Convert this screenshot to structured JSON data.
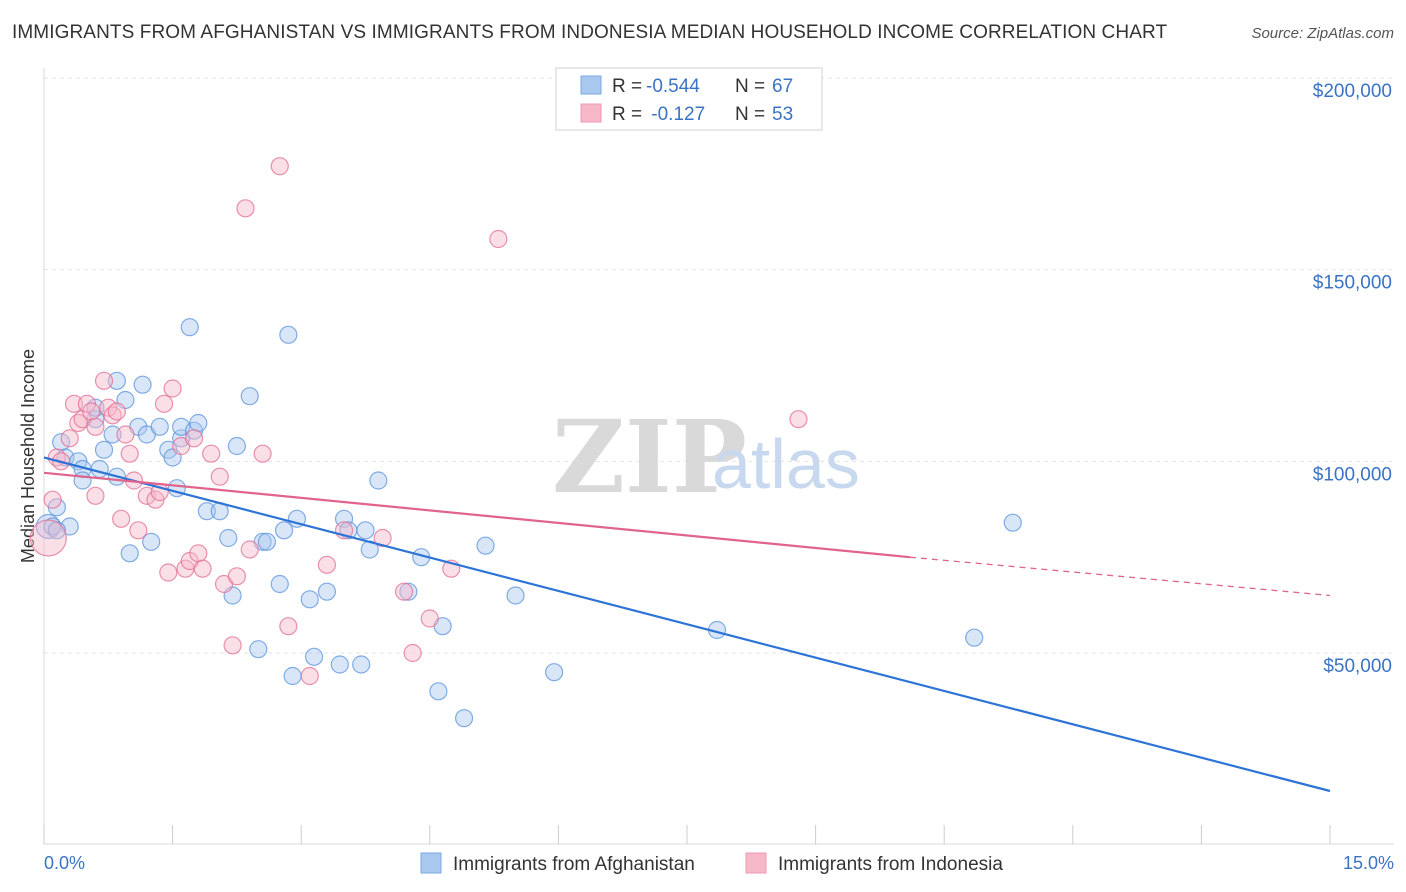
{
  "title": "IMMIGRANTS FROM AFGHANISTAN VS IMMIGRANTS FROM INDONESIA MEDIAN HOUSEHOLD INCOME CORRELATION CHART",
  "source": "Source: ZipAtlas.com",
  "watermark": {
    "zip": "ZIP",
    "atlas": "atlas"
  },
  "legend_top": [
    {
      "r_label": "R = ",
      "r_value": "-0.544",
      "n_label": "N = ",
      "n_value": "67",
      "color": "#a9c8ef"
    },
    {
      "r_label": "R = ",
      "r_value": " -0.127",
      "n_label": "N = ",
      "n_value": "53",
      "color": "#f6b8c9"
    }
  ],
  "legend_bottom": [
    {
      "label": "Immigrants from Afghanistan",
      "color": "#a9c8ef"
    },
    {
      "label": "Immigrants from Indonesia",
      "color": "#f6b8c9"
    }
  ],
  "chart_data": {
    "type": "scatter",
    "title": "IMMIGRANTS FROM AFGHANISTAN VS IMMIGRANTS FROM INDONESIA MEDIAN HOUSEHOLD INCOME CORRELATION CHART",
    "xlabel": "",
    "ylabel": "Median Household Income",
    "xlim": [
      0,
      15
    ],
    "ylim": [
      0,
      210000
    ],
    "x_tick_labels": [
      "0.0%",
      "15.0%"
    ],
    "y_ticks": [
      50000,
      100000,
      150000,
      200000
    ],
    "y_tick_labels": [
      "$50,000",
      "$100,000",
      "$150,000",
      "$200,000"
    ],
    "grid": true,
    "series": [
      {
        "name": "Immigrants from Afghanistan",
        "color": "#5b93dc",
        "fill": "#a9c8ef",
        "trend": {
          "x": [
            0.0,
            15.0
          ],
          "y": [
            101000,
            14000
          ]
        },
        "points": [
          [
            0.05,
            83000
          ],
          [
            0.1,
            83000
          ],
          [
            0.15,
            88000
          ],
          [
            0.2,
            105000
          ],
          [
            0.25,
            101000
          ],
          [
            0.3,
            83000
          ],
          [
            0.4,
            100000
          ],
          [
            0.45,
            98000
          ],
          [
            0.45,
            95000
          ],
          [
            0.6,
            111000
          ],
          [
            0.6,
            114000
          ],
          [
            0.65,
            98000
          ],
          [
            0.7,
            103000
          ],
          [
            0.8,
            107000
          ],
          [
            0.85,
            96000
          ],
          [
            0.85,
            121000
          ],
          [
            0.95,
            116000
          ],
          [
            1.0,
            76000
          ],
          [
            1.1,
            109000
          ],
          [
            1.15,
            120000
          ],
          [
            1.2,
            107000
          ],
          [
            1.25,
            79000
          ],
          [
            1.35,
            109000
          ],
          [
            1.45,
            103000
          ],
          [
            1.5,
            101000
          ],
          [
            1.55,
            93000
          ],
          [
            1.6,
            106000
          ],
          [
            1.6,
            109000
          ],
          [
            1.7,
            135000
          ],
          [
            1.75,
            108000
          ],
          [
            1.8,
            110000
          ],
          [
            1.9,
            87000
          ],
          [
            2.05,
            87000
          ],
          [
            2.15,
            80000
          ],
          [
            2.2,
            65000
          ],
          [
            2.25,
            104000
          ],
          [
            2.4,
            117000
          ],
          [
            2.5,
            51000
          ],
          [
            2.55,
            79000
          ],
          [
            2.6,
            79000
          ],
          [
            2.75,
            68000
          ],
          [
            2.8,
            82000
          ],
          [
            2.85,
            133000
          ],
          [
            2.9,
            44000
          ],
          [
            2.95,
            85000
          ],
          [
            3.1,
            64000
          ],
          [
            3.15,
            49000
          ],
          [
            3.3,
            66000
          ],
          [
            3.45,
            47000
          ],
          [
            3.5,
            85000
          ],
          [
            3.55,
            82000
          ],
          [
            3.7,
            47000
          ],
          [
            3.75,
            82000
          ],
          [
            3.8,
            77000
          ],
          [
            3.9,
            95000
          ],
          [
            4.25,
            66000
          ],
          [
            4.4,
            75000
          ],
          [
            4.6,
            40000
          ],
          [
            4.65,
            57000
          ],
          [
            4.9,
            33000
          ],
          [
            5.15,
            78000
          ],
          [
            5.5,
            65000
          ],
          [
            5.95,
            45000
          ],
          [
            7.85,
            56000
          ],
          [
            10.85,
            54000
          ],
          [
            11.3,
            84000
          ],
          [
            0.15,
            82000
          ]
        ]
      },
      {
        "name": "Immigrants from Indonesia",
        "color": "#e26d93",
        "fill": "#f6b8c9",
        "trend": {
          "x": [
            0.0,
            10.1
          ],
          "y": [
            97000,
            75000
          ]
        },
        "trend_dashed": {
          "x": [
            10.1,
            15.0
          ],
          "y": [
            75000,
            65000
          ]
        },
        "points": [
          [
            0.05,
            80000
          ],
          [
            0.1,
            90000
          ],
          [
            0.15,
            101000
          ],
          [
            0.2,
            100000
          ],
          [
            0.3,
            106000
          ],
          [
            0.35,
            115000
          ],
          [
            0.4,
            110000
          ],
          [
            0.45,
            111000
          ],
          [
            0.5,
            115000
          ],
          [
            0.55,
            113000
          ],
          [
            0.6,
            109000
          ],
          [
            0.6,
            91000
          ],
          [
            0.7,
            121000
          ],
          [
            0.75,
            114000
          ],
          [
            0.8,
            112000
          ],
          [
            0.85,
            113000
          ],
          [
            0.9,
            85000
          ],
          [
            0.95,
            107000
          ],
          [
            1.0,
            102000
          ],
          [
            1.05,
            95000
          ],
          [
            1.1,
            82000
          ],
          [
            1.2,
            91000
          ],
          [
            1.3,
            90000
          ],
          [
            1.35,
            92000
          ],
          [
            1.4,
            115000
          ],
          [
            1.45,
            71000
          ],
          [
            1.5,
            119000
          ],
          [
            1.6,
            104000
          ],
          [
            1.65,
            72000
          ],
          [
            1.7,
            74000
          ],
          [
            1.75,
            106000
          ],
          [
            1.8,
            76000
          ],
          [
            1.85,
            72000
          ],
          [
            1.95,
            102000
          ],
          [
            2.05,
            96000
          ],
          [
            2.1,
            68000
          ],
          [
            2.2,
            52000
          ],
          [
            2.25,
            70000
          ],
          [
            2.35,
            166000
          ],
          [
            2.4,
            77000
          ],
          [
            2.55,
            102000
          ],
          [
            2.75,
            177000
          ],
          [
            2.85,
            57000
          ],
          [
            3.1,
            44000
          ],
          [
            3.3,
            73000
          ],
          [
            3.5,
            82000
          ],
          [
            3.95,
            80000
          ],
          [
            4.2,
            66000
          ],
          [
            4.3,
            50000
          ],
          [
            4.5,
            59000
          ],
          [
            4.75,
            72000
          ],
          [
            5.3,
            158000
          ],
          [
            8.8,
            111000
          ]
        ]
      }
    ]
  }
}
